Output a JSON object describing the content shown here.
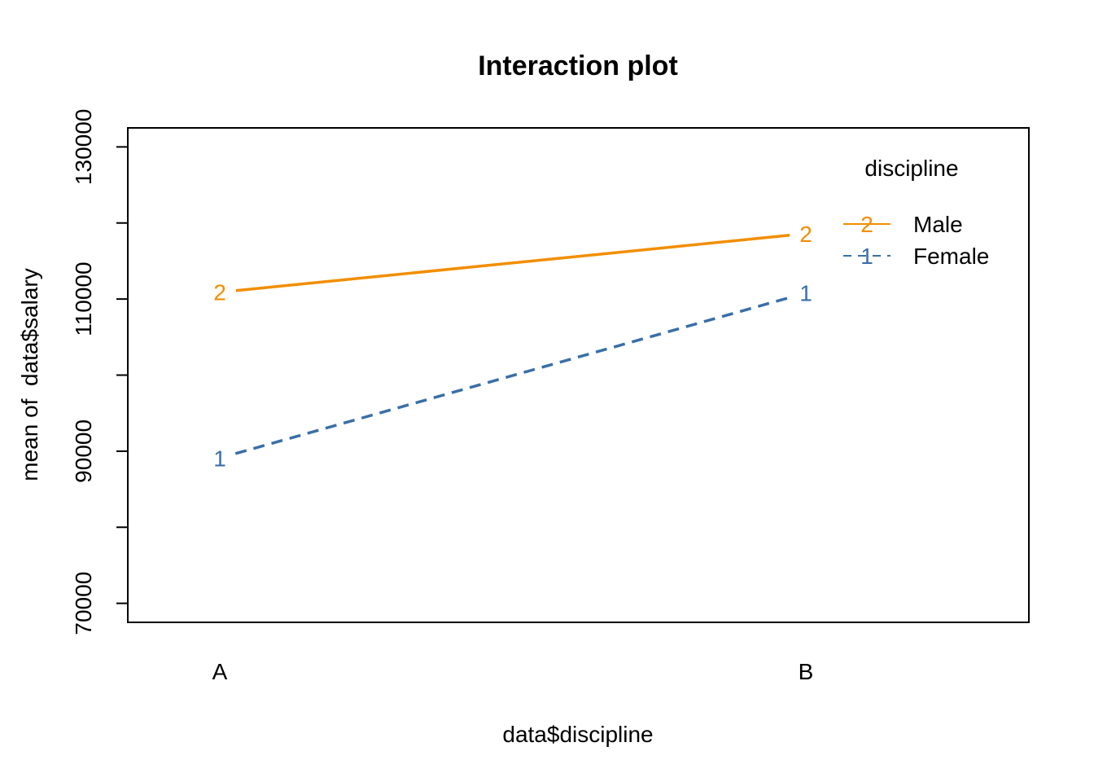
{
  "chart_data": {
    "type": "line",
    "title": "Interaction plot",
    "xlabel": "data$discipline",
    "ylabel": "mean of  data$salary",
    "categories": [
      "A",
      "B"
    ],
    "ylim": [
      67500,
      132500
    ],
    "yticks": [
      70000,
      80000,
      90000,
      100000,
      110000,
      120000,
      130000
    ],
    "ytick_labels": [
      "70000",
      "",
      "90000",
      "",
      "110000",
      "",
      "130000"
    ],
    "grid": false,
    "legend": {
      "title": "discipline",
      "position": "top-right",
      "entries": [
        {
          "symbol": "2",
          "label": "Male",
          "color": "#F28E00",
          "dash": "solid"
        },
        {
          "symbol": "1",
          "label": "Female",
          "color": "#3A6FA8",
          "dash": "dashed"
        }
      ]
    },
    "series": [
      {
        "symbol": "2",
        "color": "#F28E00",
        "dash": "solid",
        "values": [
          110900,
          118600
        ]
      },
      {
        "symbol": "1",
        "color": "#3A6FA8",
        "dash": "dashed",
        "values": [
          89100,
          110800
        ]
      }
    ]
  }
}
